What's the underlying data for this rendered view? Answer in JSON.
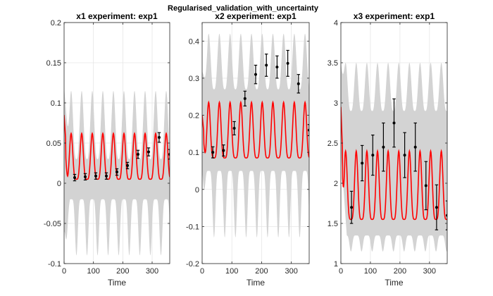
{
  "chart_data": {
    "type": "line",
    "title": "Regularised_validation_with_uncertainty",
    "panels": [
      {
        "title": "x1 experiment: exp1",
        "xlabel": "Time",
        "xlim": [
          0,
          360
        ],
        "ylim": [
          -0.1,
          0.2
        ],
        "xticks": [
          0,
          100,
          200,
          300
        ],
        "xtick_labels": [
          "0",
          "100",
          "200",
          "300"
        ],
        "yticks": [
          -0.1,
          -0.05,
          0,
          0.05,
          0.1,
          0.15,
          0.2
        ],
        "ytick_labels": [
          "-0.1",
          "-0.05",
          "0",
          "0.05",
          "0.1",
          "0.15",
          "0.2"
        ],
        "grid": true,
        "model": {
          "color": "#ff0000",
          "initial": 0.085,
          "base": 0.005,
          "peak": 0.062,
          "period": 36,
          "first_peak": 24
        },
        "band": {
          "color": "#d3d3d3",
          "lower_base": -0.02,
          "lower_dip": -0.09,
          "upper_base": 0.03,
          "upper_peak": 0.115,
          "initial_upper": 0.12,
          "initial_lower": -0.06
        },
        "measurements": {
          "x": [
            36,
            72,
            108,
            144,
            180,
            216,
            252,
            288,
            324,
            360
          ],
          "y": [
            0.007,
            0.008,
            0.009,
            0.009,
            0.014,
            0.022,
            0.036,
            0.039,
            0.057,
            0.036
          ],
          "err": [
            0.004,
            0.004,
            0.004,
            0.004,
            0.004,
            0.004,
            0.005,
            0.005,
            0.006,
            0.006
          ]
        }
      },
      {
        "title": "x2 experiment: exp1",
        "xlabel": "Time",
        "xlim": [
          0,
          360
        ],
        "ylim": [
          -0.2,
          0.45
        ],
        "xticks": [
          0,
          100,
          200,
          300
        ],
        "xtick_labels": [
          "0",
          "100",
          "200",
          "300"
        ],
        "yticks": [
          -0.2,
          -0.1,
          0,
          0.1,
          0.2,
          0.3,
          0.4
        ],
        "ytick_labels": [
          "-0.2",
          "-0.1",
          "0",
          "0.1",
          "0.2",
          "0.3",
          "0.4"
        ],
        "grid": true,
        "model": {
          "color": "#ff0000",
          "initial": 0.2,
          "base": 0.085,
          "peak": 0.235,
          "period": 36,
          "first_peak": 22
        },
        "band": {
          "color": "#d3d3d3",
          "lower_base": 0.05,
          "lower_dip": -0.13,
          "upper_base": 0.27,
          "upper_peak": 0.42,
          "initial_upper": 0.32,
          "initial_lower": 0.05
        },
        "measurements": {
          "x": [
            36,
            72,
            108,
            144,
            180,
            216,
            252,
            288,
            324,
            360
          ],
          "y": [
            0.1,
            0.105,
            0.165,
            0.245,
            0.31,
            0.335,
            0.33,
            0.34,
            0.285,
            0.16
          ],
          "err": [
            0.015,
            0.015,
            0.018,
            0.02,
            0.025,
            0.03,
            0.03,
            0.035,
            0.025,
            0.015
          ]
        }
      },
      {
        "title": "x3 experiment: exp1",
        "xlabel": "Time",
        "xlim": [
          0,
          360
        ],
        "ylim": [
          1,
          4
        ],
        "xticks": [
          0,
          100,
          200,
          300
        ],
        "xtick_labels": [
          "0",
          "100",
          "200",
          "300"
        ],
        "yticks": [
          1,
          1.5,
          2,
          2.5,
          3,
          3.5,
          4
        ],
        "ytick_labels": [
          "1",
          "1.5",
          "2",
          "2.5",
          "3",
          "3.5",
          "4"
        ],
        "grid": true,
        "model": {
          "color": "#ff0000",
          "initial": 2.95,
          "base": 1.55,
          "peak": 2.4,
          "period": 36,
          "first_peak": 52
        },
        "band": {
          "color": "#d3d3d3",
          "lower_base": 1.35,
          "lower_dip": 1.15,
          "upper_base": 2.9,
          "upper_peak": 3.5,
          "initial_upper": 3.5,
          "initial_lower": 2.4
        },
        "measurements": {
          "x": [
            36,
            72,
            108,
            144,
            180,
            216,
            252,
            288,
            324,
            360
          ],
          "y": [
            1.7,
            2.25,
            2.35,
            2.45,
            2.75,
            2.35,
            2.45,
            1.97,
            1.7,
            1.6
          ],
          "err": [
            0.2,
            0.22,
            0.25,
            0.3,
            0.3,
            0.28,
            0.3,
            0.3,
            0.28,
            0.18
          ]
        }
      }
    ]
  }
}
